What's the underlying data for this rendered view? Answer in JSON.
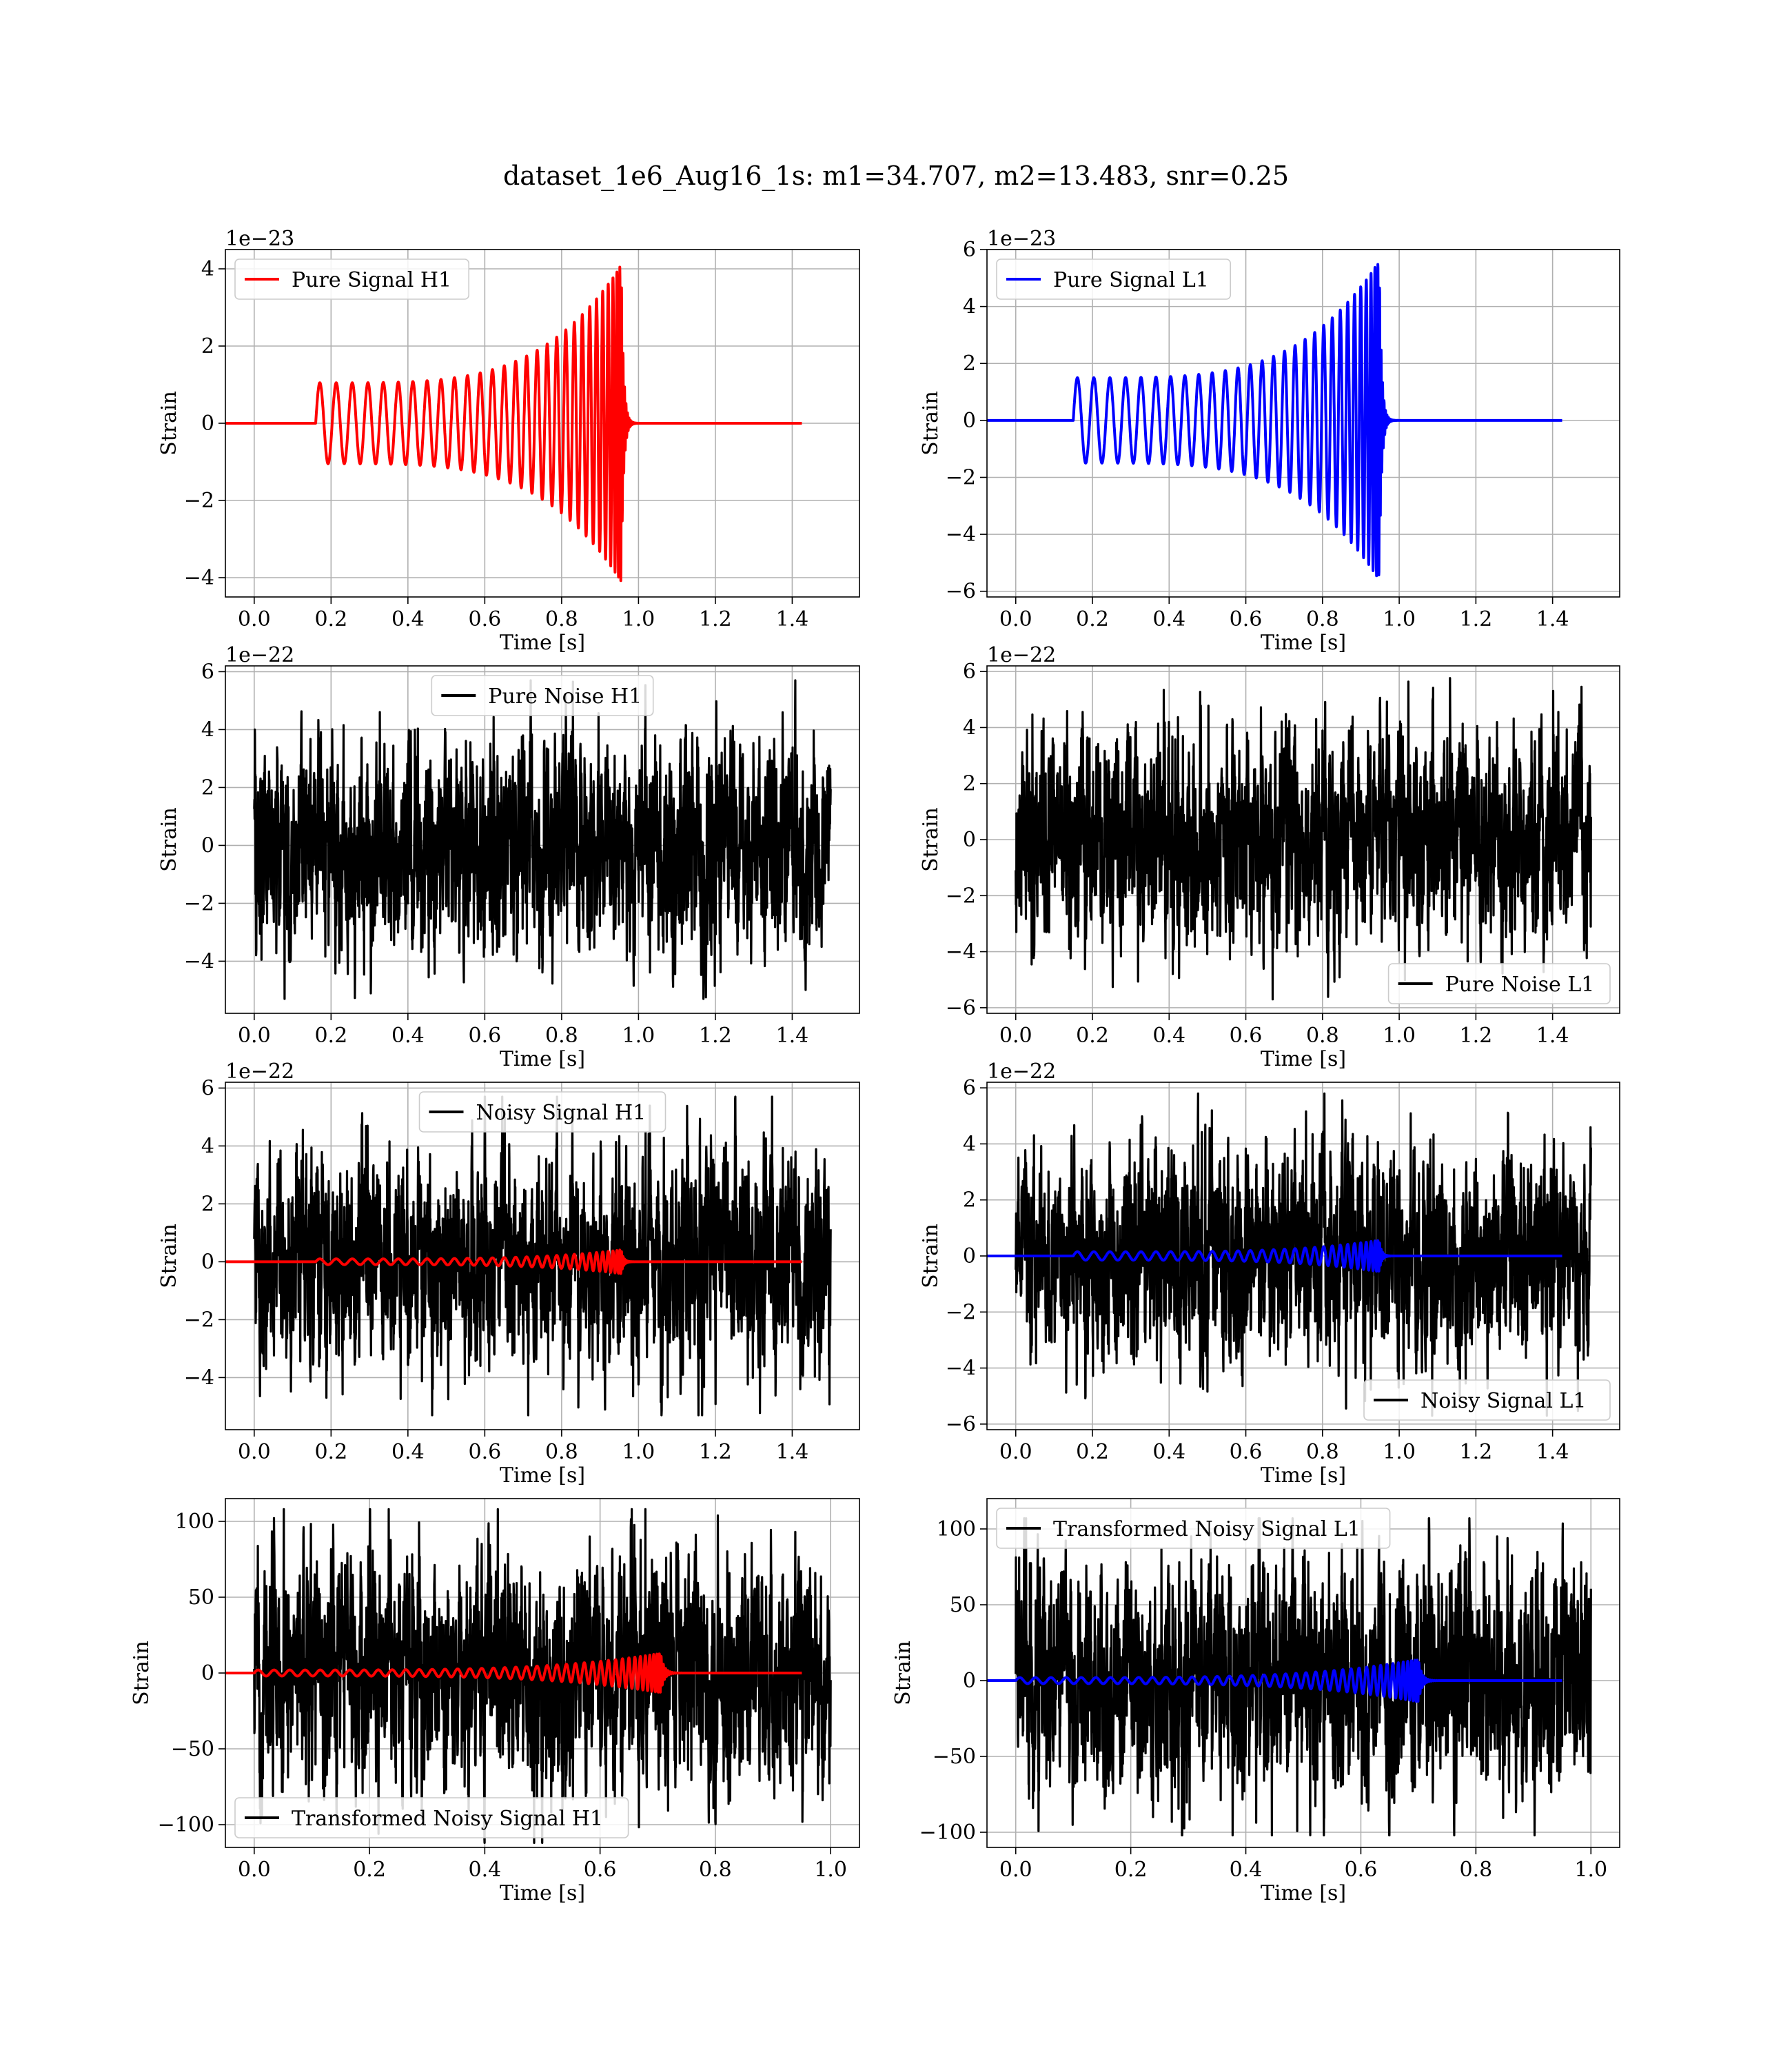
{
  "figure": {
    "title": "dataset_1e6_Aug16_1s: m1=34.707, m2=13.483, snr=0.25"
  },
  "chart_data": [
    {
      "type": "line",
      "id": "h1-pure-signal",
      "xlabel": "Time [s]",
      "ylabel": "Strain",
      "exponent": "1e−23",
      "xlim": [
        -0.075,
        1.575
      ],
      "xticks": [
        0.0,
        0.2,
        0.4,
        0.6,
        0.8,
        1.0,
        1.2,
        1.4
      ],
      "ylim": [
        -4.5,
        4.5
      ],
      "yticks": [
        -4,
        -2,
        0,
        2,
        4
      ],
      "grid": true,
      "legend": {
        "position": "upper-left"
      },
      "series": [
        {
          "name": "Pure Signal H1",
          "color": "#ff0000",
          "kind": "chirp",
          "t_start": 0.16,
          "t_merge": 0.955,
          "t_end": 1.5,
          "amp_start": 1.05,
          "amp_peak": 4.1,
          "cycles": 29
        }
      ]
    },
    {
      "type": "line",
      "id": "l1-pure-signal",
      "xlabel": "Time [s]",
      "ylabel": "Strain",
      "exponent": "1e−23",
      "xlim": [
        -0.075,
        1.575
      ],
      "xticks": [
        0.0,
        0.2,
        0.4,
        0.6,
        0.8,
        1.0,
        1.2,
        1.4
      ],
      "ylim": [
        -6.2,
        6.0
      ],
      "yticks": [
        -6,
        -4,
        -2,
        0,
        2,
        4,
        6
      ],
      "grid": true,
      "legend": {
        "position": "upper-left"
      },
      "series": [
        {
          "name": "Pure Signal L1",
          "color": "#0000ff",
          "kind": "chirp",
          "t_start": 0.15,
          "t_merge": 0.948,
          "t_end": 1.5,
          "amp_start": 1.5,
          "amp_peak": 5.6,
          "cycles": 29
        }
      ]
    },
    {
      "type": "line",
      "id": "h1-pure-noise",
      "xlabel": "Time [s]",
      "ylabel": "Strain",
      "exponent": "1e−22",
      "xlim": [
        -0.075,
        1.575
      ],
      "xticks": [
        0.0,
        0.2,
        0.4,
        0.6,
        0.8,
        1.0,
        1.2,
        1.4
      ],
      "ylim": [
        -5.8,
        6.2
      ],
      "yticks": [
        -4,
        -2,
        0,
        2,
        4,
        6
      ],
      "grid": true,
      "legend": {
        "position": "upper-center"
      },
      "series": [
        {
          "name": "Pure Noise H1",
          "color": "#000000",
          "kind": "noise",
          "t_start": 0.0,
          "t_end": 1.5,
          "sigma": 1.45,
          "min": -5.3,
          "max": 5.7
        }
      ]
    },
    {
      "type": "line",
      "id": "l1-pure-noise",
      "xlabel": "Time [s]",
      "ylabel": "Strain",
      "exponent": "1e−22",
      "xlim": [
        -0.075,
        1.575
      ],
      "xticks": [
        0.0,
        0.2,
        0.4,
        0.6,
        0.8,
        1.0,
        1.2,
        1.4
      ],
      "ylim": [
        -6.2,
        6.2
      ],
      "yticks": [
        -6,
        -4,
        -2,
        0,
        2,
        4,
        6
      ],
      "grid": true,
      "legend": {
        "position": "lower-right"
      },
      "series": [
        {
          "name": "Pure Noise L1",
          "color": "#000000",
          "kind": "noise",
          "t_start": 0.0,
          "t_end": 1.5,
          "sigma": 1.5,
          "min": -5.7,
          "max": 5.8
        }
      ]
    },
    {
      "type": "line",
      "id": "h1-noisy-signal",
      "xlabel": "Time [s]",
      "ylabel": "Strain",
      "exponent": "1e−22",
      "xlim": [
        -0.075,
        1.575
      ],
      "xticks": [
        0.0,
        0.2,
        0.4,
        0.6,
        0.8,
        1.0,
        1.2,
        1.4
      ],
      "ylim": [
        -5.8,
        6.2
      ],
      "yticks": [
        -4,
        -2,
        0,
        2,
        4,
        6
      ],
      "grid": true,
      "legend": {
        "position": "upper-center"
      },
      "series": [
        {
          "name": "Noisy Signal H1",
          "color": "#000000",
          "kind": "noise",
          "t_start": 0.0,
          "t_end": 1.5,
          "sigma": 1.45,
          "min": -5.3,
          "max": 5.7
        },
        {
          "color": "#ff0000",
          "kind": "chirp",
          "t_start": 0.16,
          "t_merge": 0.955,
          "t_end": 1.5,
          "amp_start": 0.1,
          "amp_peak": 0.41,
          "cycles": 29
        }
      ]
    },
    {
      "type": "line",
      "id": "l1-noisy-signal",
      "xlabel": "Time [s]",
      "ylabel": "Strain",
      "exponent": "1e−22",
      "xlim": [
        -0.075,
        1.575
      ],
      "xticks": [
        0.0,
        0.2,
        0.4,
        0.6,
        0.8,
        1.0,
        1.2,
        1.4
      ],
      "ylim": [
        -6.2,
        6.2
      ],
      "yticks": [
        -6,
        -4,
        -2,
        0,
        2,
        4,
        6
      ],
      "grid": true,
      "legend": {
        "position": "lower-right"
      },
      "series": [
        {
          "name": "Noisy Signal L1",
          "color": "#000000",
          "kind": "noise",
          "t_start": 0.0,
          "t_end": 1.5,
          "sigma": 1.5,
          "min": -5.7,
          "max": 5.8
        },
        {
          "color": "#0000ff",
          "kind": "chirp",
          "t_start": 0.15,
          "t_merge": 0.948,
          "t_end": 1.5,
          "amp_start": 0.15,
          "amp_peak": 0.56,
          "cycles": 29
        }
      ]
    },
    {
      "type": "line",
      "id": "h1-transformed",
      "xlabel": "Time [s]",
      "ylabel": "Strain",
      "exponent": "",
      "xlim": [
        -0.05,
        1.05
      ],
      "xticks": [
        0.0,
        0.2,
        0.4,
        0.6,
        0.8,
        1.0
      ],
      "ylim": [
        -115,
        115
      ],
      "yticks": [
        -100,
        -50,
        0,
        50,
        100
      ],
      "grid": true,
      "legend": {
        "position": "lower-left"
      },
      "series": [
        {
          "name": "Transformed Noisy Signal H1",
          "color": "#000000",
          "kind": "noise",
          "t_start": 0.0,
          "t_end": 1.0,
          "sigma": 30,
          "min": -112,
          "max": 108
        },
        {
          "color": "#ff0000",
          "kind": "chirp",
          "t_start": 0.0,
          "t_merge": 0.705,
          "t_end": 1.0,
          "amp_start": 2,
          "amp_peak": 13,
          "cycles": 40
        }
      ]
    },
    {
      "type": "line",
      "id": "l1-transformed",
      "xlabel": "Time [s]",
      "ylabel": "Strain",
      "exponent": "",
      "xlim": [
        -0.05,
        1.05
      ],
      "xticks": [
        0.0,
        0.2,
        0.4,
        0.6,
        0.8,
        1.0
      ],
      "ylim": [
        -110,
        120
      ],
      "yticks": [
        -100,
        -50,
        0,
        50,
        100
      ],
      "grid": true,
      "legend": {
        "position": "upper-left"
      },
      "series": [
        {
          "name": "Transformed Noisy Signal L1",
          "color": "#000000",
          "kind": "noise",
          "t_start": 0.0,
          "t_end": 1.0,
          "sigma": 30,
          "min": -102,
          "max": 107
        },
        {
          "color": "#0000ff",
          "kind": "chirp",
          "t_start": 0.0,
          "t_merge": 0.7,
          "t_end": 1.0,
          "amp_start": 2,
          "amp_peak": 14,
          "cycles": 40
        }
      ]
    }
  ]
}
